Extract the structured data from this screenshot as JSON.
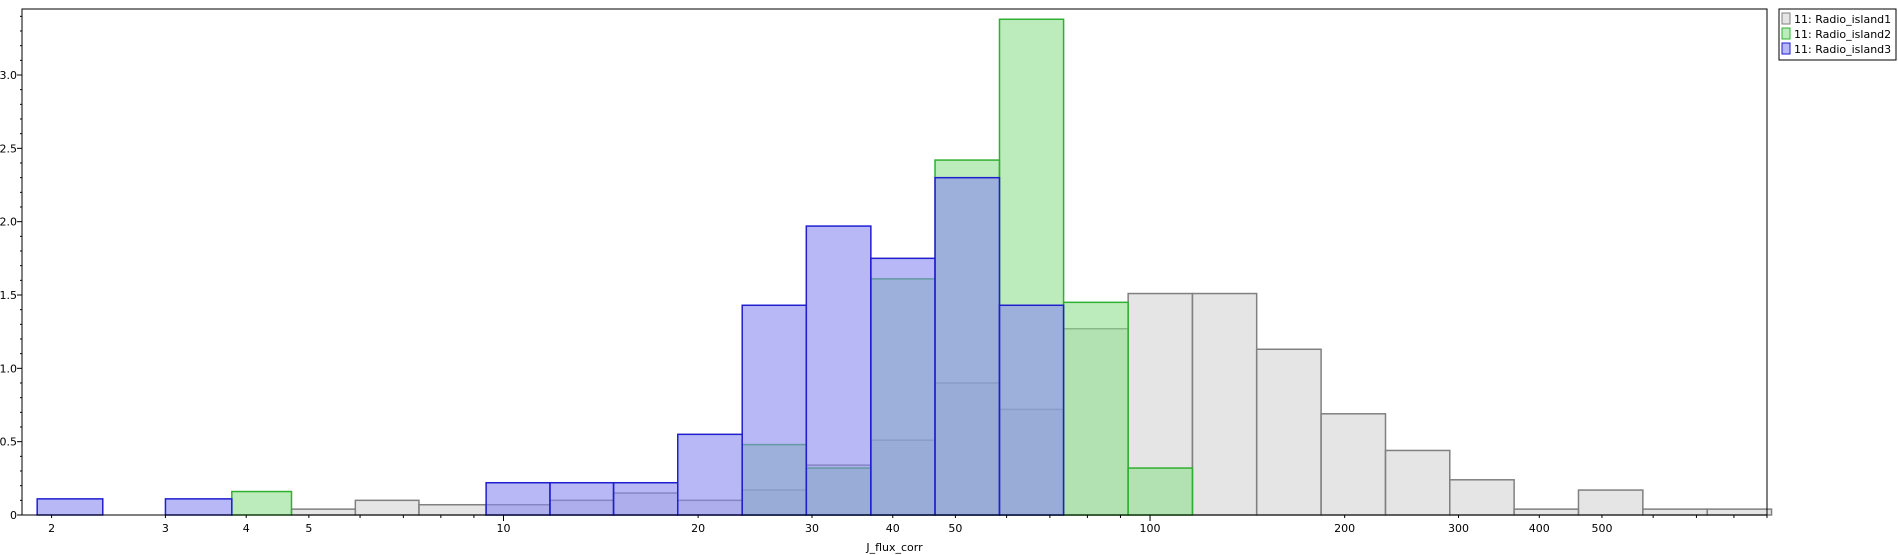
{
  "chart_data": {
    "type": "histogram",
    "xlabel": "J_flux_corr",
    "ylabel": "",
    "x_scale": "log",
    "xlim": [
      1.8,
      900
    ],
    "ylim": [
      0,
      3.45
    ],
    "grid": false,
    "legend_position": "top-right",
    "x_ticks": [
      2,
      3,
      4,
      5,
      10,
      20,
      30,
      40,
      50,
      100,
      200,
      300,
      400,
      500
    ],
    "y_ticks": [
      0,
      0.5,
      1.0,
      1.5,
      2.0,
      2.5,
      3.0
    ],
    "y_tick_labels": [
      "0",
      "0.5",
      "1.0",
      "1.5",
      "2.0",
      "2.5",
      "3.0"
    ],
    "series": [
      {
        "name": "11: Radio_island1",
        "fill": "#d3d3d3",
        "stroke": "#808080",
        "bins": [
          {
            "x0": 4.7,
            "x1": 5.9,
            "y": 0.04
          },
          {
            "x0": 5.9,
            "x1": 7.4,
            "y": 0.1
          },
          {
            "x0": 7.4,
            "x1": 9.4,
            "y": 0.07
          },
          {
            "x0": 9.4,
            "x1": 11.8,
            "y": 0.07
          },
          {
            "x0": 11.8,
            "x1": 14.8,
            "y": 0.1
          },
          {
            "x0": 14.8,
            "x1": 18.6,
            "y": 0.15
          },
          {
            "x0": 18.6,
            "x1": 23.4,
            "y": 0.1
          },
          {
            "x0": 23.4,
            "x1": 29.4,
            "y": 0.17
          },
          {
            "x0": 29.4,
            "x1": 37.0,
            "y": 0.34
          },
          {
            "x0": 37.0,
            "x1": 46.5,
            "y": 0.51
          },
          {
            "x0": 46.5,
            "x1": 58.5,
            "y": 0.9
          },
          {
            "x0": 58.5,
            "x1": 73.5,
            "y": 0.72
          },
          {
            "x0": 73.5,
            "x1": 92.5,
            "y": 1.27
          },
          {
            "x0": 92.5,
            "x1": 116.3,
            "y": 1.51
          },
          {
            "x0": 116.3,
            "x1": 146.2,
            "y": 1.51
          },
          {
            "x0": 146.2,
            "x1": 183.9,
            "y": 1.13
          },
          {
            "x0": 183.9,
            "x1": 231.3,
            "y": 0.69
          },
          {
            "x0": 231.3,
            "x1": 290.8,
            "y": 0.44
          },
          {
            "x0": 290.8,
            "x1": 365.7,
            "y": 0.24
          },
          {
            "x0": 365.7,
            "x1": 459.9,
            "y": 0.04
          },
          {
            "x0": 459.9,
            "x1": 578.4,
            "y": 0.17
          },
          {
            "x0": 578.4,
            "x1": 727.4,
            "y": 0.04
          },
          {
            "x0": 727.4,
            "x1": 914.7,
            "y": 0.04
          }
        ]
      },
      {
        "name": "11: Radio_island2",
        "fill": "#90e090",
        "stroke": "#30b030",
        "bins": [
          {
            "x0": 3.8,
            "x1": 4.7,
            "y": 0.16
          },
          {
            "x0": 23.4,
            "x1": 29.4,
            "y": 0.48
          },
          {
            "x0": 29.4,
            "x1": 37.0,
            "y": 0.32
          },
          {
            "x0": 37.0,
            "x1": 46.5,
            "y": 1.61
          },
          {
            "x0": 46.5,
            "x1": 58.5,
            "y": 2.42
          },
          {
            "x0": 58.5,
            "x1": 73.5,
            "y": 3.38
          },
          {
            "x0": 73.5,
            "x1": 92.5,
            "y": 1.45
          },
          {
            "x0": 92.5,
            "x1": 116.3,
            "y": 0.32
          }
        ]
      },
      {
        "name": "11: Radio_island3",
        "fill": "#8888f0",
        "stroke": "#1f1fcf",
        "bins": [
          {
            "x0": 1.9,
            "x1": 2.4,
            "y": 0.11
          },
          {
            "x0": 3.0,
            "x1": 3.8,
            "y": 0.11
          },
          {
            "x0": 9.4,
            "x1": 11.8,
            "y": 0.22
          },
          {
            "x0": 11.8,
            "x1": 14.8,
            "y": 0.22
          },
          {
            "x0": 14.8,
            "x1": 18.6,
            "y": 0.22
          },
          {
            "x0": 18.6,
            "x1": 23.4,
            "y": 0.55
          },
          {
            "x0": 23.4,
            "x1": 29.4,
            "y": 1.43
          },
          {
            "x0": 29.4,
            "x1": 37.0,
            "y": 1.97
          },
          {
            "x0": 37.0,
            "x1": 46.5,
            "y": 1.75
          },
          {
            "x0": 46.5,
            "x1": 58.5,
            "y": 2.3
          },
          {
            "x0": 58.5,
            "x1": 73.5,
            "y": 1.43
          }
        ]
      }
    ]
  }
}
